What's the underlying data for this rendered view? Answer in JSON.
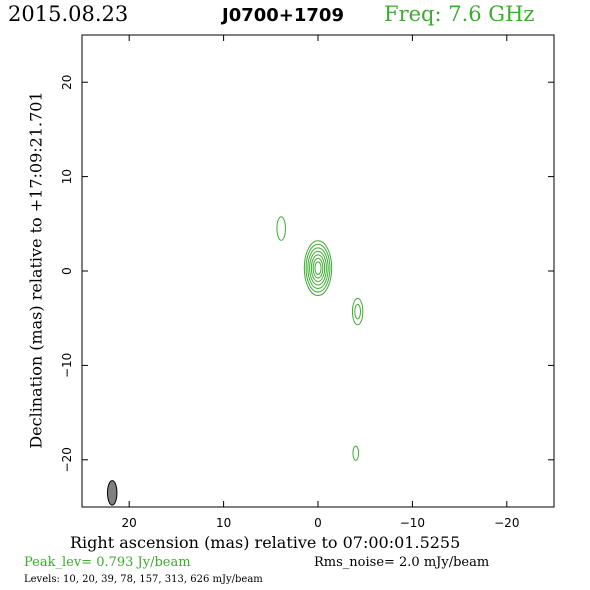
{
  "header": {
    "date": "2015.08.23",
    "source": "J0700+1709",
    "frequency": "Freq:  7.6  GHz"
  },
  "footer": {
    "peak": "Peak_lev=   0.793  Jy/beam",
    "rms": "Rms_noise=    2.0  mJy/beam",
    "levels": "Levels:  10,   20,   39,   78,  157,  313,  626  mJy/beam"
  },
  "chart_data": {
    "type": "contour",
    "xlabel": "Right ascension (mas) relative to 07:00:01.5255",
    "ylabel": "Declination (mas) relative to +17:09:21.701",
    "xlim": [
      25,
      -25
    ],
    "ylim": [
      -25,
      25
    ],
    "x_ticks": [
      20,
      10,
      0,
      -10,
      -20
    ],
    "y_ticks": [
      20,
      10,
      0,
      -10,
      -20
    ],
    "x_tick_labels": [
      "20",
      "10",
      "0",
      "−10",
      "−20"
    ],
    "y_tick_labels": [
      "20",
      "10",
      "0",
      "−10",
      "−20"
    ],
    "contour_color": "#3cab2f",
    "beam_color": "#808080",
    "contour_levels_mJy": [
      10,
      20,
      39,
      78,
      157,
      313,
      626
    ],
    "components": [
      {
        "x": 0.0,
        "y": 0.3,
        "major_mas": 5.8,
        "minor_mas": 2.9,
        "pa_deg": 0,
        "levels_shown": 7
      },
      {
        "x": -4.2,
        "y": -4.3,
        "major_mas": 2.8,
        "minor_mas": 1.1,
        "pa_deg": 0,
        "levels_shown": 2
      },
      {
        "x": 3.9,
        "y": 4.5,
        "major_mas": 2.5,
        "minor_mas": 0.9,
        "pa_deg": 0,
        "levels_shown": 1
      },
      {
        "x": -4.0,
        "y": -19.3,
        "major_mas": 1.5,
        "minor_mas": 0.6,
        "pa_deg": 0,
        "levels_shown": 1
      }
    ],
    "beam": {
      "x": 21.8,
      "y": -23.5,
      "major_mas": 2.6,
      "minor_mas": 1.0,
      "pa_deg": 0
    }
  }
}
